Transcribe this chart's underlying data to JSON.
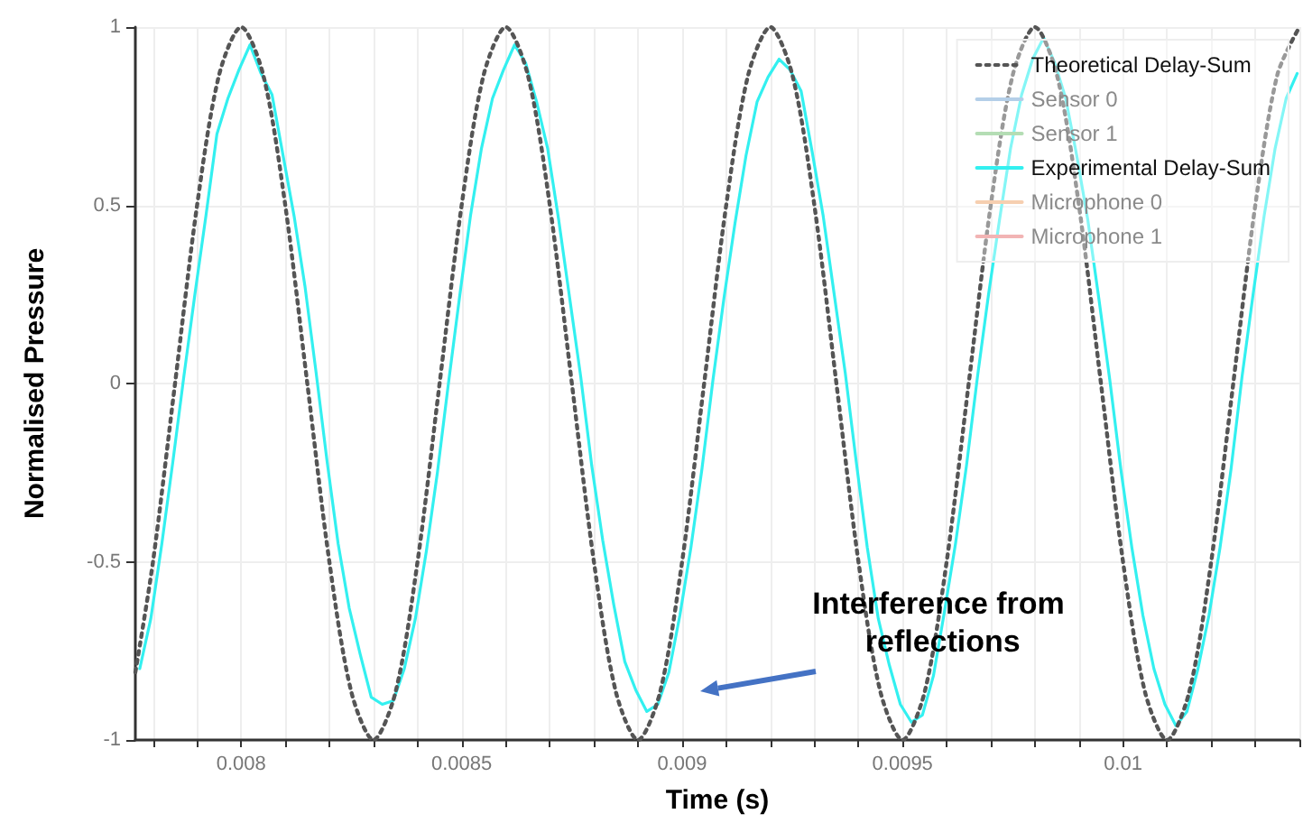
{
  "chart_data": {
    "type": "line",
    "xlabel": "Time (s)",
    "ylabel": "Normalised Pressure",
    "xlim": [
      0.00776,
      0.0104
    ],
    "ylim": [
      -1,
      1
    ],
    "xticks": [
      {
        "value": 0.0078,
        "label": null
      },
      {
        "value": 0.0079,
        "label": null
      },
      0.008,
      {
        "value": 0.0081,
        "label": null
      },
      {
        "value": 0.0082,
        "label": null
      },
      {
        "value": 0.0083,
        "label": null
      },
      {
        "value": 0.0084,
        "label": null
      },
      0.0085,
      {
        "value": 0.0086,
        "label": null
      },
      {
        "value": 0.0087,
        "label": null
      },
      {
        "value": 0.0088,
        "label": null
      },
      {
        "value": 0.0089,
        "label": null
      },
      0.009,
      {
        "value": 0.0091,
        "label": null
      },
      {
        "value": 0.0092,
        "label": null
      },
      {
        "value": 0.0093,
        "label": null
      },
      {
        "value": 0.0094,
        "label": null
      },
      0.0095,
      {
        "value": 0.0096,
        "label": null
      },
      {
        "value": 0.0097,
        "label": null
      },
      {
        "value": 0.0098,
        "label": null
      },
      {
        "value": 0.0099,
        "label": null
      },
      0.01,
      {
        "value": 0.0101,
        "label": null
      },
      {
        "value": 0.0102,
        "label": null
      },
      {
        "value": 0.0103,
        "label": null
      },
      {
        "value": 0.0104,
        "label": null
      }
    ],
    "yticks": [
      -1,
      -0.5,
      0,
      0.5,
      1
    ],
    "grid": true,
    "legend": "top right",
    "annotations": [
      "Interference from reflections"
    ],
    "series": [
      {
        "name": "Theoretical Delay-Sum",
        "color": "#555555",
        "line_style": "dotted",
        "x": [
          0.00776,
          0.0078,
          0.00785,
          0.0079,
          0.00795,
          0.008,
          0.00805,
          0.0081,
          0.00815,
          0.0082,
          0.00825,
          0.0083,
          0.00835,
          0.0084,
          0.00845,
          0.0085,
          0.00855,
          0.0086,
          0.00865,
          0.0087,
          0.00875,
          0.0088,
          0.00885,
          0.0089,
          0.00895,
          0.009,
          0.00905,
          0.0091,
          0.00915,
          0.0092,
          0.00925,
          0.0093,
          0.00935,
          0.0094,
          0.00945,
          0.0095,
          0.00955,
          0.0096,
          0.00965,
          0.0097,
          0.00975,
          0.0098,
          0.00985,
          0.0099,
          0.00995,
          0.01,
          0.01005,
          0.0101,
          0.01015,
          0.0102,
          0.01025,
          0.0103,
          0.01035,
          0.0104
        ],
        "values": [
          -0.81,
          -0.5,
          0,
          0.5,
          0.866,
          1,
          0.866,
          0.5,
          0,
          -0.5,
          -0.866,
          -1,
          -0.866,
          -0.5,
          0,
          0.5,
          0.866,
          1,
          0.866,
          0.5,
          0,
          -0.5,
          -0.866,
          -1,
          -0.866,
          -0.5,
          0,
          0.5,
          0.866,
          1,
          0.866,
          0.5,
          0,
          -0.5,
          -0.866,
          -1,
          -0.866,
          -0.5,
          0,
          0.5,
          0.866,
          1,
          0.866,
          0.5,
          0,
          -0.5,
          -0.866,
          -1,
          -0.866,
          -0.5,
          0,
          0.5,
          0.866,
          1
        ]
      },
      {
        "name": "Sensor 0",
        "color": "#b4cfe8"
      },
      {
        "name": "Sensor 1",
        "color": "#b4ddb4"
      },
      {
        "name": "Experimental Delay-Sum",
        "color": "#33f0f0",
        "line_style": "solid",
        "x": [
          0.00777,
          0.007795,
          0.00782,
          0.007845,
          0.00787,
          0.007895,
          0.00792,
          0.007945,
          0.00797,
          0.007995,
          0.00802,
          0.008045,
          0.00807,
          0.008095,
          0.00812,
          0.008145,
          0.00817,
          0.008195,
          0.00822,
          0.008245,
          0.00827,
          0.008295,
          0.00832,
          0.008345,
          0.00837,
          0.008395,
          0.00842,
          0.008445,
          0.00847,
          0.008495,
          0.00852,
          0.008545,
          0.00857,
          0.008595,
          0.00862,
          0.008645,
          0.00867,
          0.008695,
          0.00872,
          0.008745,
          0.00877,
          0.008795,
          0.00882,
          0.008845,
          0.00887,
          0.008895,
          0.00892,
          0.008945,
          0.00897,
          0.008995,
          0.00902,
          0.009045,
          0.00907,
          0.009095,
          0.00912,
          0.009145,
          0.00917,
          0.009195,
          0.00922,
          0.009245,
          0.00927,
          0.009295,
          0.00932,
          0.009345,
          0.00937,
          0.009395,
          0.00942,
          0.009445,
          0.00947,
          0.009495,
          0.00952,
          0.009545,
          0.00957,
          0.009595,
          0.00962,
          0.009645,
          0.00967,
          0.009695,
          0.00972,
          0.009745,
          0.00977,
          0.009795,
          0.00982,
          0.009845,
          0.00987,
          0.009895,
          0.00992,
          0.009945,
          0.00997,
          0.009995,
          0.01002,
          0.010045,
          0.01007,
          0.010095,
          0.01012,
          0.010145,
          0.01017,
          0.010195,
          0.01022,
          0.010245,
          0.01027,
          0.010295,
          0.01032,
          0.010345,
          0.01037,
          0.010395
        ],
        "values": [
          -0.8,
          -0.66,
          -0.45,
          -0.22,
          0.02,
          0.25,
          0.47,
          0.7,
          0.8,
          0.88,
          0.95,
          0.87,
          0.81,
          0.64,
          0.47,
          0.27,
          0.03,
          -0.22,
          -0.45,
          -0.63,
          -0.76,
          -0.88,
          -0.9,
          -0.89,
          -0.8,
          -0.66,
          -0.47,
          -0.25,
          0.0,
          0.24,
          0.47,
          0.66,
          0.8,
          0.88,
          0.95,
          0.9,
          0.79,
          0.66,
          0.46,
          0.24,
          0.02,
          -0.23,
          -0.44,
          -0.62,
          -0.78,
          -0.86,
          -0.92,
          -0.9,
          -0.81,
          -0.65,
          -0.46,
          -0.24,
          0.01,
          0.24,
          0.45,
          0.64,
          0.79,
          0.86,
          0.91,
          0.88,
          0.82,
          0.65,
          0.47,
          0.25,
          0.03,
          -0.22,
          -0.46,
          -0.66,
          -0.79,
          -0.9,
          -0.95,
          -0.93,
          -0.82,
          -0.64,
          -0.45,
          -0.23,
          0.02,
          0.25,
          0.46,
          0.66,
          0.81,
          0.91,
          0.97,
          0.9,
          0.8,
          0.64,
          0.46,
          0.24,
          0.01,
          -0.24,
          -0.46,
          -0.65,
          -0.8,
          -0.9,
          -0.96,
          -0.92,
          -0.8,
          -0.65,
          -0.46,
          -0.24,
          0.02,
          0.25,
          0.47,
          0.66,
          0.8,
          0.87
        ]
      },
      {
        "name": "Microphone 0",
        "color": "#f6cfb0"
      },
      {
        "name": "Microphone 1",
        "color": "#f2b4b4"
      }
    ]
  }
}
